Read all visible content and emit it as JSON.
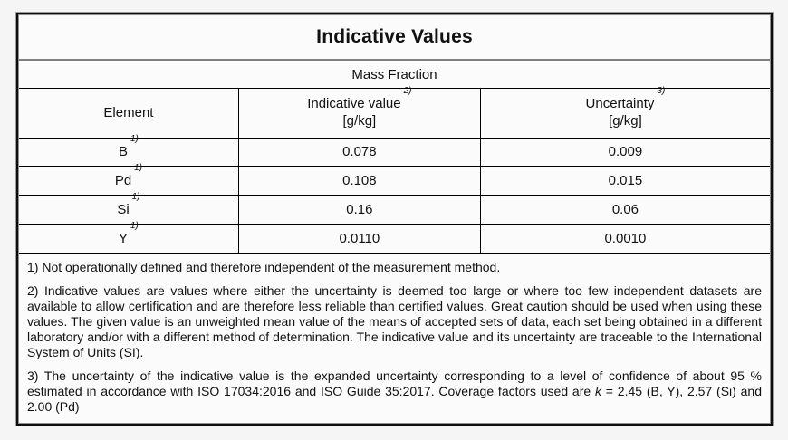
{
  "document": {
    "title": "Indicative Values",
    "subtitle": "Mass Fraction",
    "columns": {
      "element": {
        "label": "Element"
      },
      "indicative": {
        "label": "Indicative value",
        "sup": "2)",
        "unit": "[g/kg]"
      },
      "uncertainty": {
        "label": "Uncertainty",
        "sup": "3)",
        "unit": "[g/kg]"
      }
    },
    "rows": [
      {
        "element": "B",
        "sup": "1)",
        "value": "0.078",
        "uncertainty": "0.009"
      },
      {
        "element": "Pd",
        "sup": "1)",
        "value": "0.108",
        "uncertainty": "0.015"
      },
      {
        "element": "Si",
        "sup": "1)",
        "value": "0.16",
        "uncertainty": "0.06"
      },
      {
        "element": "Y",
        "sup": "1)",
        "value": "0.0110",
        "uncertainty": "0.0010"
      }
    ],
    "footnotes": {
      "fn1": "1) Not operationally defined and therefore independent of the measurement method.",
      "fn2": "2) Indicative values are values where either the uncertainty is deemed too large or where too few independent datasets are available to allow certification and are therefore less reliable than certified values. Great caution should be used when using these values. The given value is an unweighted mean value of the means of accepted sets of data, each set being obtained in a different laboratory and/or with a different method of determination. The indicative value and its uncertainty are traceable to the International System of Units (SI).",
      "fn3_before_k": "3) The uncertainty of the indicative value is the expanded uncertainty corresponding to a level of confidence of about 95 % estimated in accordance with ISO 17034:2016 and ISO Guide 35:2017. Coverage factors used are ",
      "fn3_k": "k",
      "fn3_after_k": " = 2.45 (B, Y), 2.57 (Si) and 2.00 (Pd)"
    },
    "colors": {
      "page_bg": "#f5f5f5",
      "table_bg": "#fbfbfb",
      "line_black": "#000000",
      "title_separator_gray": "#7f7f7f",
      "text": "#111111"
    }
  }
}
